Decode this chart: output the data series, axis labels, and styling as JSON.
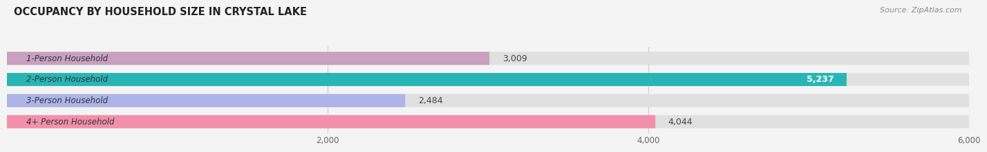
{
  "title": "OCCUPANCY BY HOUSEHOLD SIZE IN CRYSTAL LAKE",
  "source": "Source: ZipAtlas.com",
  "categories": [
    "1-Person Household",
    "2-Person Household",
    "3-Person Household",
    "4+ Person Household"
  ],
  "values": [
    3009,
    5237,
    2484,
    4044
  ],
  "bar_colors": [
    "#c9a0bf",
    "#29b5b5",
    "#adb4e8",
    "#f28faa"
  ],
  "xlim": [
    0,
    6000
  ],
  "xticks": [
    2000,
    4000,
    6000
  ],
  "label_colors": [
    "#444444",
    "#ffffff",
    "#444444",
    "#444444"
  ],
  "bg_color": "#f4f4f4",
  "bar_bg_color": "#e0e0e0",
  "title_color": "#222222",
  "source_color": "#888888"
}
